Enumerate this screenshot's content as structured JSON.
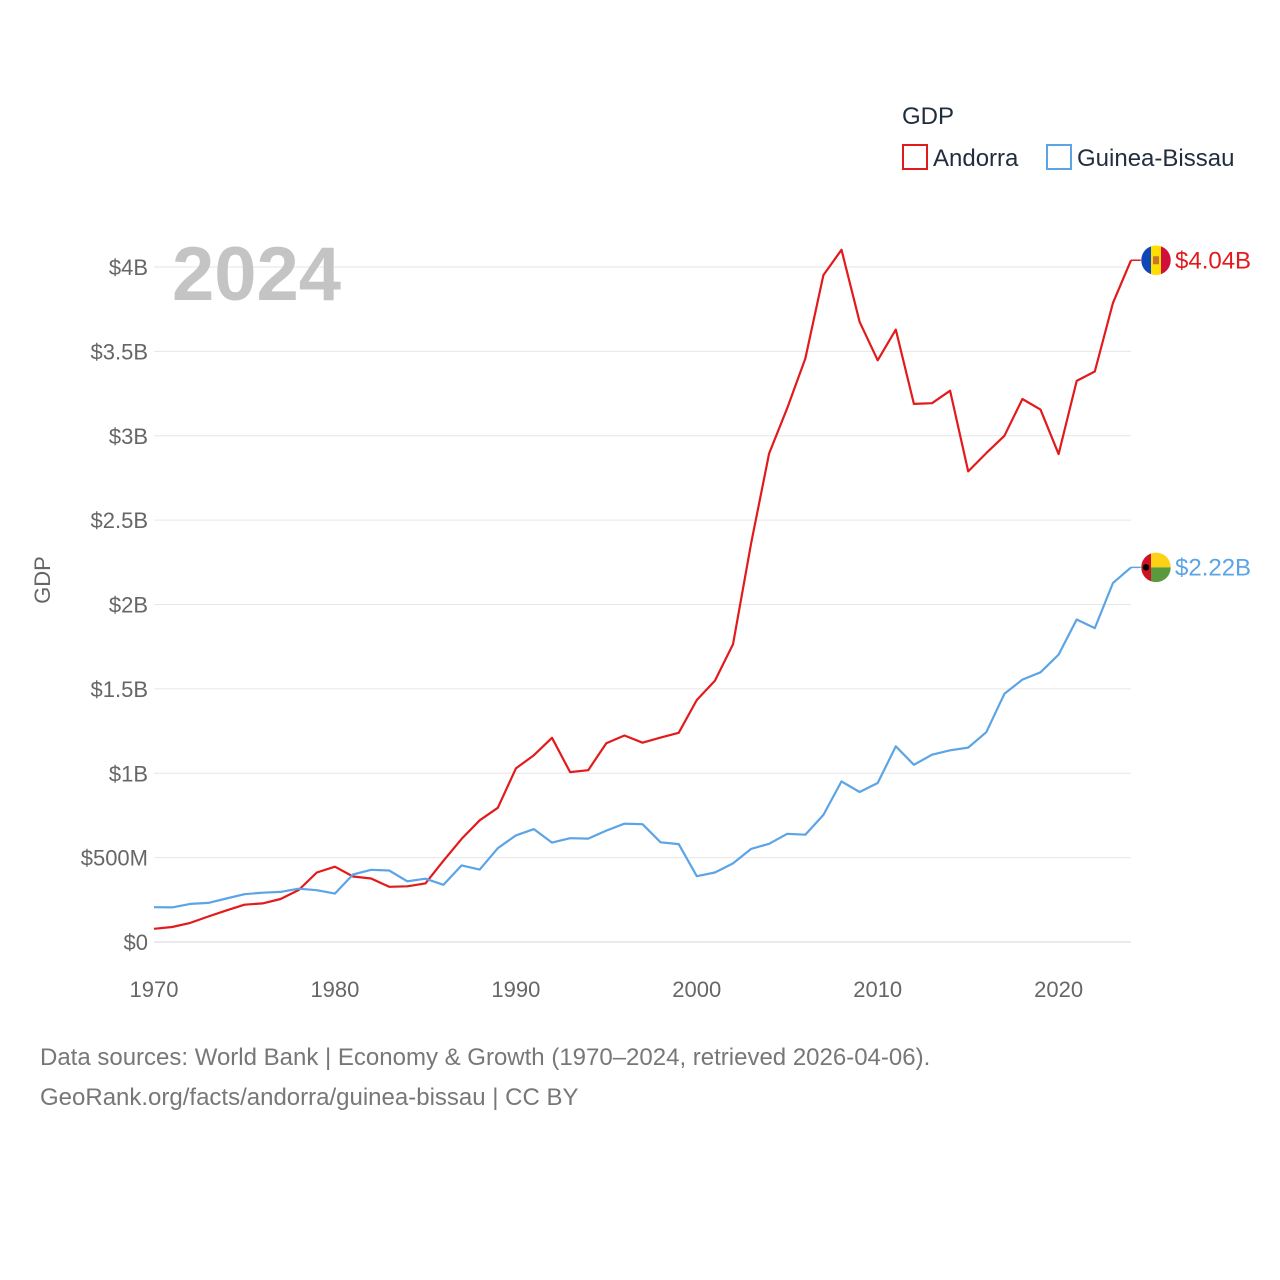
{
  "chart_data": {
    "type": "line",
    "title": "",
    "watermark_year": "2024",
    "xlabel": "",
    "ylabel": "GDP",
    "xlim": [
      1970,
      2024
    ],
    "ylim": [
      0,
      4000000000
    ],
    "grid": true,
    "x_ticks": [
      {
        "value": 1970,
        "label": "1970"
      },
      {
        "value": 1980,
        "label": "1980"
      },
      {
        "value": 1990,
        "label": "1990"
      },
      {
        "value": 2000,
        "label": "2000"
      },
      {
        "value": 2010,
        "label": "2010"
      },
      {
        "value": 2020,
        "label": "2020"
      }
    ],
    "y_ticks": [
      {
        "value": 0,
        "label": "$0"
      },
      {
        "value": 500000000,
        "label": "$500M"
      },
      {
        "value": 1000000000,
        "label": "$1B"
      },
      {
        "value": 1500000000,
        "label": "$1.5B"
      },
      {
        "value": 2000000000,
        "label": "$2B"
      },
      {
        "value": 2500000000,
        "label": "$2.5B"
      },
      {
        "value": 3000000000,
        "label": "$3B"
      },
      {
        "value": 3500000000,
        "label": "$3.5B"
      },
      {
        "value": 4000000000,
        "label": "$4B"
      }
    ],
    "legend": {
      "title": "GDP",
      "position": "top-right"
    },
    "x": [
      1970,
      1971,
      1972,
      1973,
      1974,
      1975,
      1976,
      1977,
      1978,
      1979,
      1980,
      1981,
      1982,
      1983,
      1984,
      1985,
      1986,
      1987,
      1988,
      1989,
      1990,
      1991,
      1992,
      1993,
      1994,
      1995,
      1996,
      1997,
      1998,
      1999,
      2000,
      2001,
      2002,
      2003,
      2004,
      2005,
      2006,
      2007,
      2008,
      2009,
      2010,
      2011,
      2012,
      2013,
      2014,
      2015,
      2016,
      2017,
      2018,
      2019,
      2020,
      2021,
      2022,
      2023,
      2024
    ],
    "series": [
      {
        "name": "Andorra",
        "color": "#e31a1c",
        "end_label": "$4.04B",
        "flag": "andorra",
        "values": [
          78000000,
          89000000,
          113000000,
          151000000,
          187000000,
          221000000,
          229000000,
          255000000,
          308000000,
          412000000,
          446000000,
          388000000,
          376000000,
          327000000,
          330000000,
          347000000,
          482000000,
          611000000,
          721000000,
          795000000,
          1029000000,
          1107000000,
          1210000000,
          1007000000,
          1018000000,
          1178000000,
          1224000000,
          1181000000,
          1211000000,
          1240000000,
          1434000000,
          1548000000,
          1764000000,
          2362000000,
          2895000000,
          3163000000,
          3457000000,
          3952000000,
          4102000000,
          3675000000,
          3447000000,
          3629000000,
          3189000000,
          3193000000,
          3267000000,
          2789000000,
          2897000000,
          3000000000,
          3218000000,
          3155000000,
          2891000000,
          3325000000,
          3381000000,
          3786000000,
          4040000000
        ]
      },
      {
        "name": "Guinea-Bissau",
        "color": "#5ba4e5",
        "end_label": "$2.22B",
        "flag": "guinea-bissau",
        "values": [
          206000000,
          205000000,
          226000000,
          232000000,
          258000000,
          283000000,
          292000000,
          297000000,
          316000000,
          307000000,
          287000000,
          400000000,
          428000000,
          424000000,
          360000000,
          375000000,
          339000000,
          454000000,
          429000000,
          556000000,
          632000000,
          669000000,
          589000000,
          615000000,
          613000000,
          660000000,
          701000000,
          698000000,
          591000000,
          580000000,
          390000000,
          412000000,
          466000000,
          552000000,
          582000000,
          641000000,
          636000000,
          753000000,
          952000000,
          889000000,
          942000000,
          1160000000,
          1050000000,
          1110000000,
          1136000000,
          1152000000,
          1243000000,
          1471000000,
          1555000000,
          1598000000,
          1703000000,
          1911000000,
          1860000000,
          2127000000,
          2220000000
        ]
      }
    ]
  },
  "footer": {
    "line1": "Data sources: World Bank | Economy & Growth (1970–2024, retrieved 2026-04-06).",
    "line2": "GeoRank.org/facts/andorra/guinea-bissau | CC BY"
  }
}
